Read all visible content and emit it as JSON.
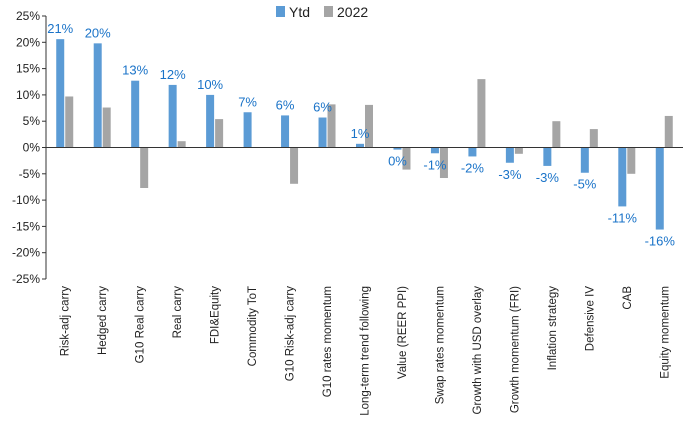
{
  "chart_data": {
    "type": "bar",
    "categories": [
      "Risk-adj carry",
      "Hedged carry",
      "G10 Real carry",
      "Real carry",
      "FDI&Equity",
      "Commodity ToT",
      "G10 Risk-adj carry",
      "G10 rates momentum",
      "Long-term trend following",
      "Value (REER PPI)",
      "Swap rates momentum",
      "Growth with USD overlay",
      "Growth momentum (FRI)",
      "Inflation strategy",
      "Defensive IV",
      "CAB",
      "Equity momentum"
    ],
    "series": [
      {
        "name": "Ytd",
        "color": "#5b9bd5",
        "values": [
          21,
          20,
          13,
          12,
          10,
          7,
          6,
          6,
          1,
          0,
          -1,
          -2,
          -3,
          -3,
          -5,
          -11,
          -16
        ],
        "labels": [
          "21%",
          "20%",
          "13%",
          "12%",
          "10%",
          "7%",
          "6%",
          "6%",
          "1%",
          "0%",
          "-1%",
          "-2%",
          "-3%",
          "-3%",
          "-5%",
          "-11%",
          "-16%"
        ],
        "plot_values": [
          20.6,
          19.8,
          12.7,
          11.9,
          10.0,
          6.7,
          6.1,
          5.7,
          0.7,
          -0.4,
          -1.1,
          -1.7,
          -2.9,
          -3.5,
          -4.8,
          -11.2,
          -15.6
        ]
      },
      {
        "name": "2022",
        "color": "#a5a5a5",
        "values": [
          9.7,
          7.6,
          -7.7,
          1.2,
          5.4,
          0,
          -6.9,
          8.2,
          8.1,
          -4.2,
          -5.8,
          13.0,
          -1.2,
          5.0,
          3.5,
          -5.0,
          6.0
        ]
      }
    ],
    "ylim": [
      -25,
      25
    ],
    "yticks": [
      -25,
      -20,
      -15,
      -10,
      -5,
      0,
      5,
      10,
      15,
      20,
      25
    ],
    "ytick_labels": [
      "-25%",
      "-20%",
      "-15%",
      "-10%",
      "-5%",
      "0%",
      "5%",
      "10%",
      "15%",
      "20%",
      "25%"
    ],
    "legend": {
      "position": "top-center",
      "items": [
        "Ytd",
        "2022"
      ]
    },
    "grid": false,
    "title": "",
    "xlabel": "",
    "ylabel": ""
  }
}
